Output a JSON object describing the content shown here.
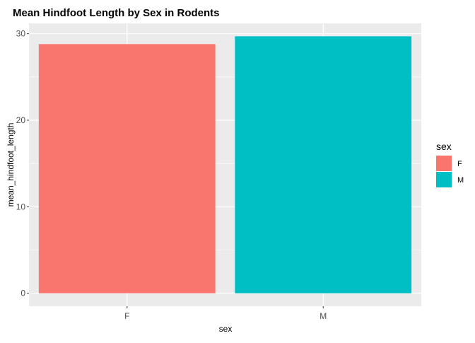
{
  "chart_data": {
    "type": "bar",
    "title": "Mean Hindfoot Length by Sex in Rodents",
    "xlabel": "sex",
    "ylabel": "mean_hindfoot_length",
    "categories": [
      "F",
      "M"
    ],
    "values": [
      28.8,
      29.7
    ],
    "colors": [
      "#F8766D",
      "#00BFC4"
    ],
    "ylim": [
      -1.5,
      31.2
    ],
    "yticks": [
      0,
      10,
      20,
      30
    ],
    "grid": true,
    "legend": {
      "title": "sex",
      "placement": "right",
      "entries": [
        {
          "label": "F",
          "color": "#F8766D"
        },
        {
          "label": "M",
          "color": "#00BFC4"
        }
      ]
    },
    "panel_background": "#EBEBEB",
    "grid_color": "#FFFFFF"
  }
}
